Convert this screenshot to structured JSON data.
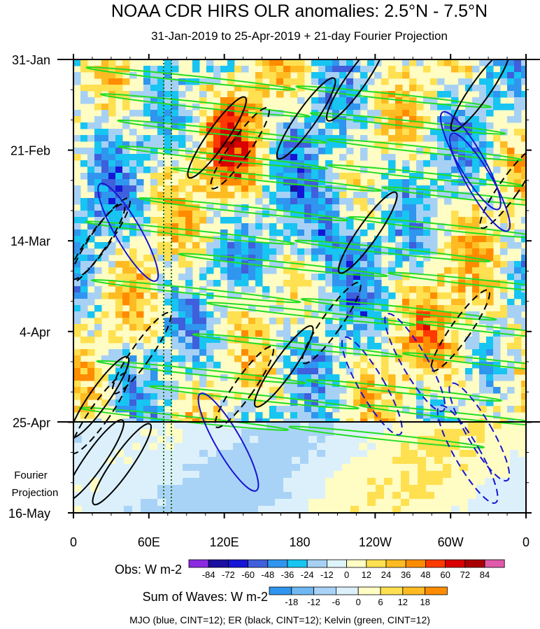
{
  "chart_data": {
    "type": "heatmap",
    "title": "NOAA CDR HIRS OLR anomalies: 2.5°N - 7.5°N",
    "subtitle": "31-Jan-2019 to 25-Apr-2019 + 21-day Fourier Projection",
    "x_axis": {
      "tick_labels": [
        "0",
        "60E",
        "120E",
        "180",
        "120W",
        "60W",
        "0"
      ],
      "range_deg_east": [
        0,
        360
      ]
    },
    "y_axis": {
      "tick_labels": [
        "31-Jan",
        "21-Feb",
        "14-Mar",
        "4-Apr",
        "25-Apr",
        "16-May"
      ],
      "range": [
        "31-Jan-2019",
        "16-May-2019"
      ]
    },
    "projection_label_line1": "Fourier",
    "projection_label_line2": "Projection",
    "projection_start": "25-Apr",
    "obs_colorbar": {
      "label": "Obs: W m-2",
      "levels": [
        "-84",
        "-72",
        "-60",
        "-48",
        "-36",
        "-24",
        "-12",
        "0",
        "12",
        "24",
        "36",
        "48",
        "60",
        "72",
        "84"
      ],
      "colors": [
        "#8a2be2",
        "#1a0fa0",
        "#1515d5",
        "#3f5fdc",
        "#2f95ee",
        "#17c4f2",
        "#a6d1f5",
        "#def4fb",
        "#fffcc4",
        "#ffe050",
        "#ffbb22",
        "#ff8c00",
        "#ff3a00",
        "#d90000",
        "#a80000",
        "#e05aa8"
      ]
    },
    "waves_colorbar": {
      "label": "Sum of Waves: W m-2",
      "levels": [
        "-18",
        "-12",
        "-6",
        "0",
        "6",
        "12",
        "18"
      ],
      "colors": [
        "#2f95ee",
        "#6fb8f2",
        "#a9d3f6",
        "#dcf0fb",
        "#fffcc4",
        "#ffe050",
        "#ffbb22",
        "#ff8c00"
      ]
    },
    "footnote": "MJO (blue, CINT=12); ER (black, CINT=12); Kelvin (green, CINT=12)",
    "overlays": [
      {
        "name": "MJO",
        "color": "#1515d5"
      },
      {
        "name": "ER",
        "color": "#000000"
      },
      {
        "name": "Kelvin",
        "color": "#22dd22"
      }
    ],
    "reference_longitudes_deg_east": [
      72,
      78
    ]
  }
}
